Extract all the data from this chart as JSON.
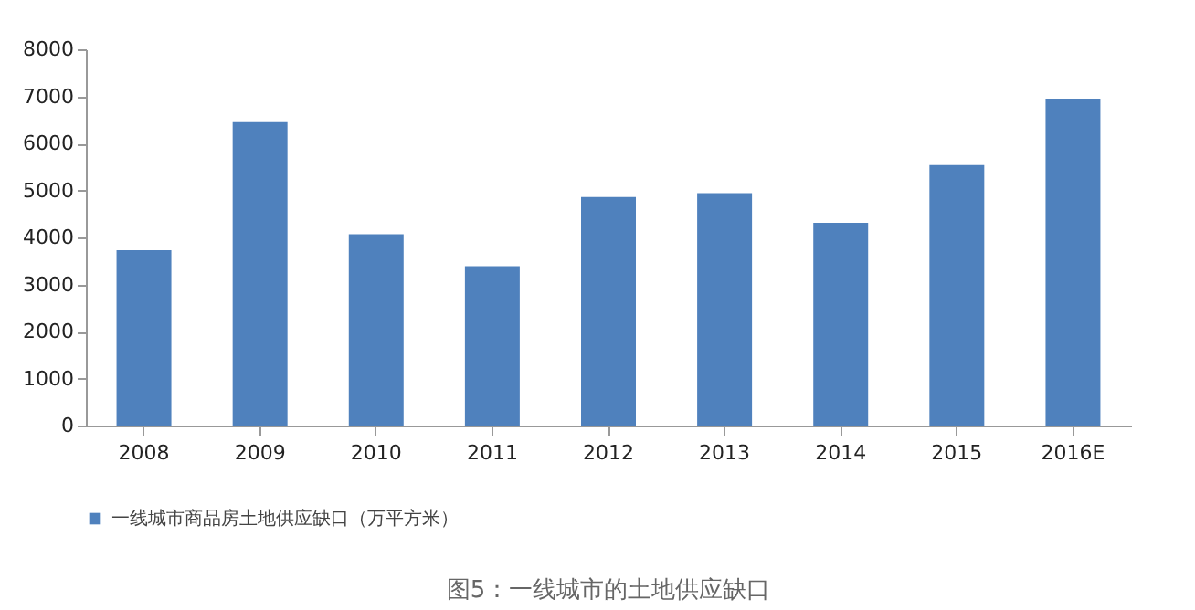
{
  "chart_data": {
    "type": "bar",
    "categories": [
      "2008",
      "2009",
      "2010",
      "2011",
      "2012",
      "2013",
      "2014",
      "2015",
      "2016E"
    ],
    "series": [
      {
        "name": "一线城市商品房土地供应缺口（万平方米）",
        "color": "#4f81bd",
        "values": [
          3730,
          6450,
          4070,
          3390,
          4860,
          4940,
          4310,
          5540,
          6950
        ]
      }
    ],
    "ylim": [
      0,
      8000
    ],
    "yticks": [
      0,
      1000,
      2000,
      3000,
      4000,
      5000,
      6000,
      7000,
      8000
    ],
    "grid": false,
    "legend": "bottom",
    "annotations": [
      "图5：一线城市的土地供应缺口"
    ]
  }
}
